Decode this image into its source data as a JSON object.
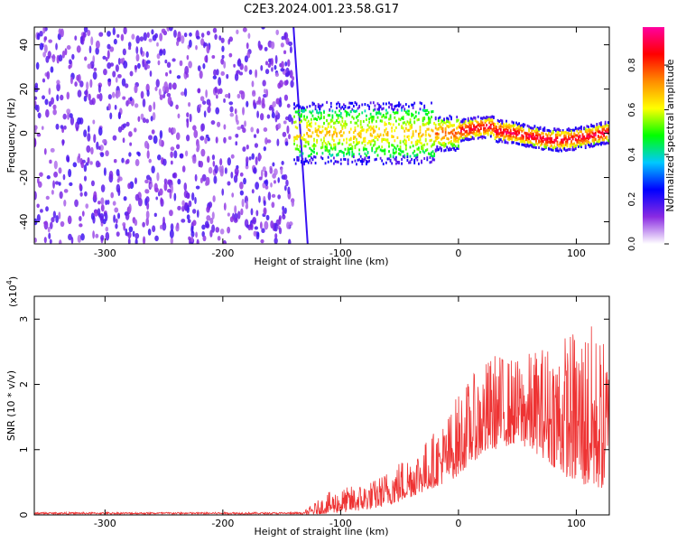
{
  "title": "C2E3.2024.001.23.58.G17",
  "chart_data": [
    {
      "type": "heatmap",
      "xlabel": "Height of straight line (km)",
      "ylabel": "Frequency (Hz)",
      "xlim": [
        -360,
        128
      ],
      "ylim": [
        -50,
        48
      ],
      "xticks": [
        -300,
        -200,
        -100,
        0,
        100
      ],
      "yticks": [
        -40,
        -20,
        0,
        20,
        40
      ],
      "grid": false,
      "colorbar": {
        "label": "Normalized spectral amplitude",
        "range": [
          0,
          0.97
        ],
        "ticks": [
          "0.0",
          "0.2",
          "0.4",
          "0.6",
          "0.8"
        ],
        "colormap": [
          "#ffffff",
          "#8a2be2",
          "#0000ff",
          "#00c8ff",
          "#00ff00",
          "#ffff00",
          "#ff8c00",
          "#ff0000",
          "#ff00a0"
        ]
      },
      "regions": [
        {
          "name": "broadband noise",
          "x": [
            -360,
            -140
          ],
          "y": [
            -50,
            48
          ],
          "amplitude": 0.15
        },
        {
          "name": "signal band",
          "x": [
            -140,
            128
          ],
          "center_y": 0,
          "amplitude_range": [
            0.2,
            0.95
          ]
        }
      ]
    },
    {
      "type": "line",
      "xlabel": "Height of straight line (km)",
      "ylabel": "SNR (10 * v/v)",
      "multiplier_label": "(x10",
      "multiplier_exp": "4",
      "multiplier_close": ")",
      "xlim": [
        -360,
        128
      ],
      "ylim": [
        0,
        3.35
      ],
      "xticks": [
        -300,
        -200,
        -100,
        0,
        100
      ],
      "yticks": [
        0,
        1,
        2,
        3
      ],
      "line_color": "#ee3333",
      "envelope": {
        "x": [
          -360,
          -200,
          -130,
          -110,
          -90,
          -70,
          -50,
          -30,
          -10,
          0,
          10,
          30,
          50,
          70,
          90,
          110,
          128
        ],
        "max": [
          0.05,
          0.06,
          0.08,
          0.35,
          0.45,
          0.55,
          0.85,
          1.1,
          1.5,
          1.9,
          2.1,
          2.5,
          2.4,
          2.6,
          2.8,
          3.0,
          2.6
        ],
        "base": [
          0.0,
          0.0,
          0.0,
          0.02,
          0.05,
          0.1,
          0.2,
          0.35,
          0.5,
          0.6,
          0.8,
          1.0,
          1.1,
          0.9,
          0.6,
          0.4,
          0.4
        ]
      }
    }
  ]
}
